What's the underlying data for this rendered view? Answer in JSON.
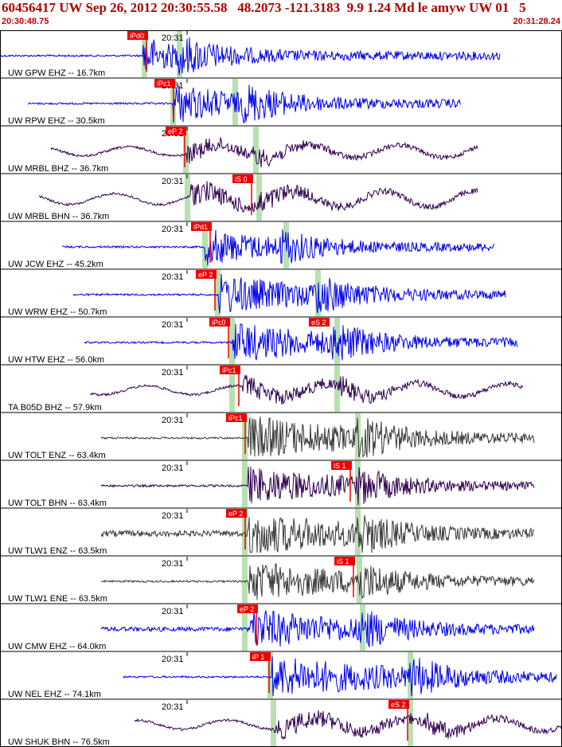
{
  "header": {
    "title": "60456417 UW Sep 26, 2012 20:30:55.58   48.2073 -121.3183  9.9 1.24 Md le amyw UW 01   5",
    "start_time": "20:30:48.75",
    "end_time": "20:31:28.24"
  },
  "colors": {
    "header_text": "#b00000",
    "pick_box": "#ee0000",
    "pick_text": "#ffffff",
    "window_band": "#b8e0b0",
    "trace_blue": "#0000ee",
    "trace_purple": "#300050",
    "trace_gray": "#383838",
    "divider": "#000000"
  },
  "chart_data": {
    "type": "line",
    "title": "60456417 UW Sep 26, 2012 20:30:55.58   48.2073 -121.3183  9.9 1.24 Md le amyw UW 01   5",
    "time_range": [
      "20:30:48.75",
      "20:31:28.24"
    ],
    "minute_tick_label": "20:31",
    "grid": false,
    "channels": [
      {
        "label": "UW GPW EHZ -- 16.7km",
        "color": "blue",
        "tick": "20:31",
        "pick": "iPd0",
        "pick2": "",
        "start": 0.0,
        "end": 0.89,
        "wave": "gpw"
      },
      {
        "label": "UW RPW EHZ -- 30.5km",
        "color": "blue",
        "tick": "20:31",
        "pick": "iPc1",
        "pick2": "",
        "start": 0.05,
        "end": 0.82,
        "wave": "rpw"
      },
      {
        "label": "UW MRBL BHZ -- 36.7km",
        "color": "purple",
        "tick": "20:31",
        "pick": "eP 2",
        "pick2": "",
        "start": 0.09,
        "end": 0.85,
        "wave": "mrbl"
      },
      {
        "label": "UW MRBL BHN -- 36.7km",
        "color": "purple",
        "tick": "20:31",
        "pick": "iS 0",
        "pick2": "",
        "start": 0.07,
        "end": 0.85,
        "wave": "mrbln"
      },
      {
        "label": "UW JCW EHZ -- 45.2km",
        "color": "blue",
        "tick": "20:31",
        "pick": "iPd1",
        "pick2": "",
        "start": 0.11,
        "end": 0.88,
        "wave": "jcw"
      },
      {
        "label": "UW WRW EHZ -- 50.7km",
        "color": "blue",
        "tick": "20:31",
        "pick": "eP 2",
        "pick2": "",
        "start": 0.13,
        "end": 0.9,
        "wave": "wrw"
      },
      {
        "label": "UW HTW EHZ -- 56.0km",
        "color": "blue",
        "tick": "20:31",
        "pick": "iPc0",
        "pick2": "eS 2",
        "start": 0.15,
        "end": 0.92,
        "wave": "htw"
      },
      {
        "label": "TA B05D BHZ -- 57.9km",
        "color": "purple",
        "tick": "20:31",
        "pick": "iPc1",
        "pick2": "",
        "start": 0.16,
        "end": 0.93,
        "wave": "b05d"
      },
      {
        "label": "UW TOLT ENZ -- 63.4km",
        "color": "gray",
        "tick": "20:31",
        "pick": "iPc1",
        "pick2": "",
        "start": 0.18,
        "end": 0.95,
        "wave": "tolt"
      },
      {
        "label": "UW TOLT BHN -- 63.4km",
        "color": "purple",
        "tick": "20:31",
        "pick": "iS 1",
        "pick2": "",
        "start": 0.18,
        "end": 0.95,
        "wave": "toltn"
      },
      {
        "label": "UW TLW1 ENZ -- 63.5km",
        "color": "gray",
        "tick": "20:31",
        "pick": "eP 2",
        "pick2": "",
        "start": 0.18,
        "end": 0.95,
        "wave": "tlwz"
      },
      {
        "label": "UW TLW1 ENE -- 63.5km",
        "color": "gray",
        "tick": "20:31",
        "pick": "iS 1",
        "pick2": "",
        "start": 0.18,
        "end": 0.95,
        "wave": "tlwe"
      },
      {
        "label": "UW CMW EHZ -- 64.0km",
        "color": "blue",
        "tick": "20:31",
        "pick": "eP 2",
        "pick2": "",
        "start": 0.18,
        "end": 0.95,
        "wave": "cmw"
      },
      {
        "label": "UW NEL EHZ -- 74.1km",
        "color": "blue",
        "tick": "20:31",
        "pick": "iP 1",
        "pick2": "",
        "start": 0.22,
        "end": 0.99,
        "wave": "nel"
      },
      {
        "label": "UW SHUK BHN -- 76.5km",
        "color": "purple",
        "tick": "20:31",
        "pick": "eS 2",
        "pick2": "",
        "start": 0.24,
        "end": 1.0,
        "wave": "shuk"
      }
    ]
  }
}
